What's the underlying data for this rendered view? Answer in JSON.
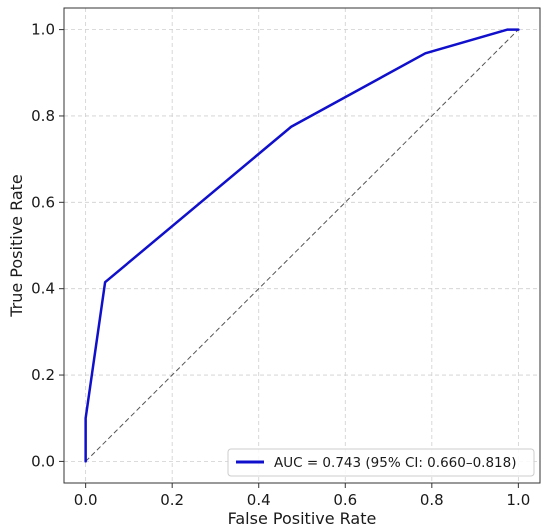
{
  "chart_data": {
    "type": "line",
    "title": "",
    "xlabel": "False Positive Rate",
    "ylabel": "True Positive Rate",
    "xlim": [
      -0.05,
      1.05
    ],
    "ylim": [
      -0.05,
      1.05
    ],
    "xticks": [
      "0.0",
      "0.2",
      "0.4",
      "0.6",
      "0.8",
      "1.0"
    ],
    "yticks": [
      "0.0",
      "0.2",
      "0.4",
      "0.6",
      "0.8",
      "1.0"
    ],
    "xtick_values": [
      0.0,
      0.2,
      0.4,
      0.6,
      0.8,
      1.0
    ],
    "ytick_values": [
      0.0,
      0.2,
      0.4,
      0.6,
      0.8,
      1.0
    ],
    "grid": true,
    "legend_position": "bottom-right",
    "series": [
      {
        "name": "AUC = 0.743 (95% CI: 0.660–0.818)",
        "color": "#1010cc",
        "x": [
          0.0,
          0.0,
          0.0,
          0.045,
          0.475,
          0.785,
          0.975,
          1.0
        ],
        "y": [
          0.0,
          0.1,
          0.1,
          0.415,
          0.775,
          0.945,
          1.0,
          1.0
        ]
      }
    ],
    "reference_line": {
      "x": [
        0.0,
        1.0
      ],
      "y": [
        0.0,
        1.0
      ],
      "color": "#555555",
      "style": "dashed"
    }
  }
}
